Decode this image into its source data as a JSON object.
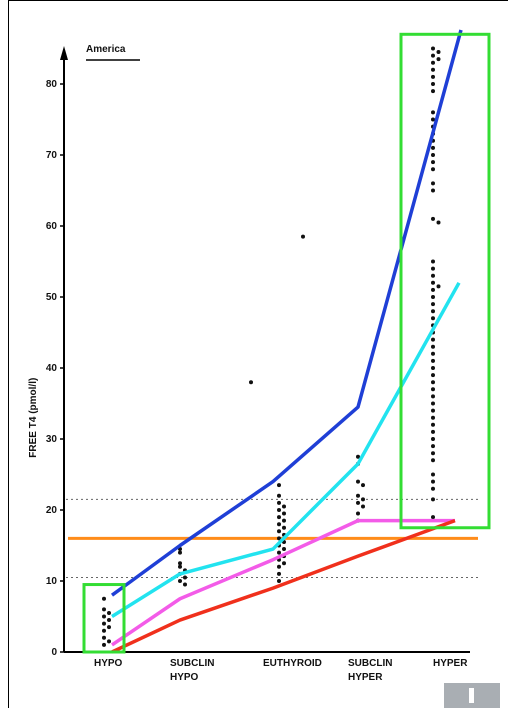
{
  "chart_data": {
    "type": "scatter",
    "title": "America",
    "ylabel": "FREE T4 (pmol/l)",
    "ylim": [
      0,
      85
    ],
    "yticks": [
      0,
      10,
      20,
      30,
      40,
      50,
      60,
      70,
      80
    ],
    "categories": [
      {
        "lines": [
          "HYPO"
        ]
      },
      {
        "lines": [
          "SUBCLIN",
          "HYPO"
        ]
      },
      {
        "lines": [
          "EUTHYROID"
        ]
      },
      {
        "lines": [
          "SUBCLIN",
          "HYPER"
        ]
      },
      {
        "lines": [
          "HYPER"
        ]
      }
    ],
    "reference_lines": [
      {
        "y": 21.5,
        "style": "dotted",
        "color": "#666666"
      },
      {
        "y": 10.5,
        "style": "dotted",
        "color": "#666666"
      },
      {
        "y": 16,
        "style": "solid",
        "color": "#ff8c1a"
      }
    ],
    "points": {
      "hypo": [
        7.5,
        6,
        5.5,
        5,
        4.5,
        4,
        3.5,
        3,
        2,
        1.5,
        1
      ],
      "subclin_hypo": [
        14.5,
        14,
        12.5,
        12,
        11.5,
        11,
        10.5,
        10,
        9.5
      ],
      "euthyroid": [
        38,
        23.5,
        22,
        21,
        20.5,
        20,
        19.5,
        19,
        18.5,
        18,
        17.5,
        17,
        16.5,
        16,
        15.5,
        15,
        14.5,
        14,
        13.5,
        13,
        12.5,
        12,
        11,
        10,
        58.5
      ],
      "subclin_hyper": [
        27.5,
        26.5,
        24,
        23.5,
        22,
        21.5,
        21,
        20.5,
        19.5,
        18.5
      ],
      "hyper": [
        85,
        84.5,
        84,
        83.5,
        83,
        82,
        81,
        80,
        79,
        76,
        75,
        74,
        73,
        72,
        71,
        70,
        69,
        68,
        66,
        65,
        61,
        60.5,
        55,
        54,
        53,
        52,
        51.5,
        51,
        50,
        49,
        48,
        47,
        46,
        45,
        44,
        43,
        42,
        41,
        40,
        39,
        38,
        37,
        36,
        35,
        34,
        33,
        32,
        31,
        30,
        29,
        28,
        27,
        25,
        24,
        23,
        21.5,
        19
      ]
    },
    "series": [
      {
        "color": "#1f3fd6",
        "values": [
          8,
          15,
          24,
          34.5,
          88
        ]
      },
      {
        "color": "#22e3ef",
        "values": [
          5,
          11,
          14.5,
          26.5,
          52
        ]
      },
      {
        "color": "#f35be8",
        "values": [
          1,
          7.5,
          13,
          18.5,
          18.5
        ]
      },
      {
        "color": "#f0301c",
        "values": [
          0,
          4.5,
          9,
          13.5,
          18.5
        ]
      }
    ],
    "highlight_boxes": [
      {
        "category": 0,
        "y_range": [
          0,
          9.5
        ],
        "color": "#33dd33"
      },
      {
        "category": 4,
        "y_range": [
          17.5,
          87
        ],
        "color": "#33dd33"
      }
    ]
  }
}
